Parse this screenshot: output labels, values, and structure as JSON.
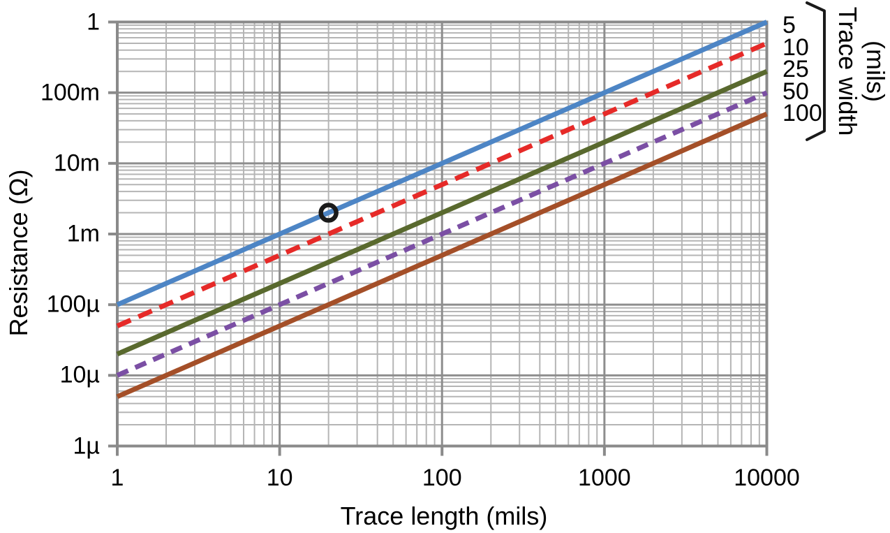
{
  "chart_data": {
    "type": "line",
    "title": "",
    "xlabel": "Trace length (mils)",
    "ylabel": "Resistance (Ω)",
    "x_scale": "log",
    "y_scale": "log",
    "xlim": [
      1,
      10000
    ],
    "ylim": [
      1e-06,
      1
    ],
    "grid": {
      "major": true,
      "minor": true
    },
    "x_ticks": [
      {
        "value": 1,
        "label": "1"
      },
      {
        "value": 10,
        "label": "10"
      },
      {
        "value": 100,
        "label": "100"
      },
      {
        "value": 1000,
        "label": "1000"
      },
      {
        "value": 10000,
        "label": "10000"
      }
    ],
    "y_ticks": [
      {
        "value": 1,
        "label": "1"
      },
      {
        "value": 0.1,
        "label": "100m"
      },
      {
        "value": 0.01,
        "label": "10m"
      },
      {
        "value": 0.001,
        "label": "1m"
      },
      {
        "value": 0.0001,
        "label": "100µ"
      },
      {
        "value": 1e-05,
        "label": "10µ"
      },
      {
        "value": 1e-06,
        "label": "1µ"
      }
    ],
    "legend": {
      "position": "right-of-plot",
      "title_lines": [
        "Trace width",
        "(mils)"
      ]
    },
    "series": [
      {
        "name": "5",
        "trace_width_mils": 5,
        "color": "#4d85c5",
        "line_style": "solid",
        "points": [
          [
            1,
            0.0001
          ],
          [
            10000,
            1
          ]
        ]
      },
      {
        "name": "10",
        "trace_width_mils": 10,
        "color": "#e62a28",
        "line_style": "dashed",
        "points": [
          [
            1,
            5e-05
          ],
          [
            10000,
            0.5
          ]
        ]
      },
      {
        "name": "25",
        "trace_width_mils": 25,
        "color": "#59692e",
        "line_style": "solid",
        "points": [
          [
            1,
            2e-05
          ],
          [
            10000,
            0.2
          ]
        ]
      },
      {
        "name": "50",
        "trace_width_mils": 50,
        "color": "#7b4fa4",
        "line_style": "dashed",
        "points": [
          [
            1,
            1e-05
          ],
          [
            10000,
            0.1
          ]
        ]
      },
      {
        "name": "100",
        "trace_width_mils": 100,
        "color": "#a44f28",
        "line_style": "solid",
        "points": [
          [
            1,
            5e-06
          ],
          [
            10000,
            0.05
          ]
        ]
      }
    ],
    "annotations": [
      {
        "type": "circle-marker",
        "x": 20,
        "y": 0.002,
        "on_series": "5",
        "color": "#1a1a1a"
      }
    ],
    "colors": {
      "background": "#ffffff",
      "grid_major": "#8e8e8e",
      "grid_minor": "#b5b5b5",
      "axis": "#8a8a8a",
      "text": "#000000",
      "legend_bracket": "#1a1a1a"
    }
  }
}
